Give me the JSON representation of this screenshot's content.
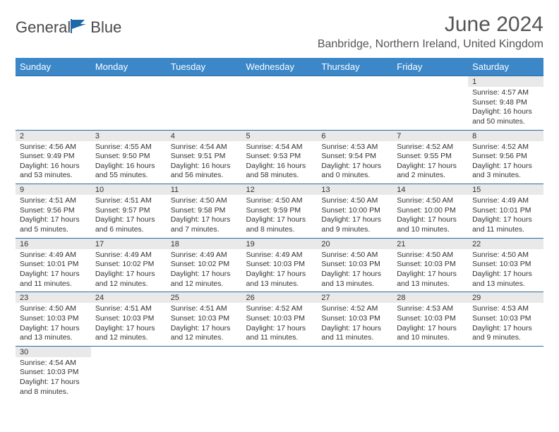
{
  "brand": {
    "name1": "General",
    "name2": "Blue"
  },
  "header": {
    "title": "June 2024",
    "location": "Banbridge, Northern Ireland, United Kingdom"
  },
  "colors": {
    "header_bg": "#3b87c8",
    "header_text": "#ffffff",
    "daynum_bg": "#e9e9e9",
    "border": "#2f6aa0",
    "text": "#333333",
    "logo_accent": "#1e68a8"
  },
  "weekdays": [
    "Sunday",
    "Monday",
    "Tuesday",
    "Wednesday",
    "Thursday",
    "Friday",
    "Saturday"
  ],
  "weeks": [
    [
      null,
      null,
      null,
      null,
      null,
      null,
      {
        "n": "1",
        "sr": "Sunrise: 4:57 AM",
        "ss": "Sunset: 9:48 PM",
        "d1": "Daylight: 16 hours",
        "d2": "and 50 minutes."
      }
    ],
    [
      {
        "n": "2",
        "sr": "Sunrise: 4:56 AM",
        "ss": "Sunset: 9:49 PM",
        "d1": "Daylight: 16 hours",
        "d2": "and 53 minutes."
      },
      {
        "n": "3",
        "sr": "Sunrise: 4:55 AM",
        "ss": "Sunset: 9:50 PM",
        "d1": "Daylight: 16 hours",
        "d2": "and 55 minutes."
      },
      {
        "n": "4",
        "sr": "Sunrise: 4:54 AM",
        "ss": "Sunset: 9:51 PM",
        "d1": "Daylight: 16 hours",
        "d2": "and 56 minutes."
      },
      {
        "n": "5",
        "sr": "Sunrise: 4:54 AM",
        "ss": "Sunset: 9:53 PM",
        "d1": "Daylight: 16 hours",
        "d2": "and 58 minutes."
      },
      {
        "n": "6",
        "sr": "Sunrise: 4:53 AM",
        "ss": "Sunset: 9:54 PM",
        "d1": "Daylight: 17 hours",
        "d2": "and 0 minutes."
      },
      {
        "n": "7",
        "sr": "Sunrise: 4:52 AM",
        "ss": "Sunset: 9:55 PM",
        "d1": "Daylight: 17 hours",
        "d2": "and 2 minutes."
      },
      {
        "n": "8",
        "sr": "Sunrise: 4:52 AM",
        "ss": "Sunset: 9:56 PM",
        "d1": "Daylight: 17 hours",
        "d2": "and 3 minutes."
      }
    ],
    [
      {
        "n": "9",
        "sr": "Sunrise: 4:51 AM",
        "ss": "Sunset: 9:56 PM",
        "d1": "Daylight: 17 hours",
        "d2": "and 5 minutes."
      },
      {
        "n": "10",
        "sr": "Sunrise: 4:51 AM",
        "ss": "Sunset: 9:57 PM",
        "d1": "Daylight: 17 hours",
        "d2": "and 6 minutes."
      },
      {
        "n": "11",
        "sr": "Sunrise: 4:50 AM",
        "ss": "Sunset: 9:58 PM",
        "d1": "Daylight: 17 hours",
        "d2": "and 7 minutes."
      },
      {
        "n": "12",
        "sr": "Sunrise: 4:50 AM",
        "ss": "Sunset: 9:59 PM",
        "d1": "Daylight: 17 hours",
        "d2": "and 8 minutes."
      },
      {
        "n": "13",
        "sr": "Sunrise: 4:50 AM",
        "ss": "Sunset: 10:00 PM",
        "d1": "Daylight: 17 hours",
        "d2": "and 9 minutes."
      },
      {
        "n": "14",
        "sr": "Sunrise: 4:50 AM",
        "ss": "Sunset: 10:00 PM",
        "d1": "Daylight: 17 hours",
        "d2": "and 10 minutes."
      },
      {
        "n": "15",
        "sr": "Sunrise: 4:49 AM",
        "ss": "Sunset: 10:01 PM",
        "d1": "Daylight: 17 hours",
        "d2": "and 11 minutes."
      }
    ],
    [
      {
        "n": "16",
        "sr": "Sunrise: 4:49 AM",
        "ss": "Sunset: 10:01 PM",
        "d1": "Daylight: 17 hours",
        "d2": "and 11 minutes."
      },
      {
        "n": "17",
        "sr": "Sunrise: 4:49 AM",
        "ss": "Sunset: 10:02 PM",
        "d1": "Daylight: 17 hours",
        "d2": "and 12 minutes."
      },
      {
        "n": "18",
        "sr": "Sunrise: 4:49 AM",
        "ss": "Sunset: 10:02 PM",
        "d1": "Daylight: 17 hours",
        "d2": "and 12 minutes."
      },
      {
        "n": "19",
        "sr": "Sunrise: 4:49 AM",
        "ss": "Sunset: 10:03 PM",
        "d1": "Daylight: 17 hours",
        "d2": "and 13 minutes."
      },
      {
        "n": "20",
        "sr": "Sunrise: 4:50 AM",
        "ss": "Sunset: 10:03 PM",
        "d1": "Daylight: 17 hours",
        "d2": "and 13 minutes."
      },
      {
        "n": "21",
        "sr": "Sunrise: 4:50 AM",
        "ss": "Sunset: 10:03 PM",
        "d1": "Daylight: 17 hours",
        "d2": "and 13 minutes."
      },
      {
        "n": "22",
        "sr": "Sunrise: 4:50 AM",
        "ss": "Sunset: 10:03 PM",
        "d1": "Daylight: 17 hours",
        "d2": "and 13 minutes."
      }
    ],
    [
      {
        "n": "23",
        "sr": "Sunrise: 4:50 AM",
        "ss": "Sunset: 10:03 PM",
        "d1": "Daylight: 17 hours",
        "d2": "and 13 minutes."
      },
      {
        "n": "24",
        "sr": "Sunrise: 4:51 AM",
        "ss": "Sunset: 10:03 PM",
        "d1": "Daylight: 17 hours",
        "d2": "and 12 minutes."
      },
      {
        "n": "25",
        "sr": "Sunrise: 4:51 AM",
        "ss": "Sunset: 10:03 PM",
        "d1": "Daylight: 17 hours",
        "d2": "and 12 minutes."
      },
      {
        "n": "26",
        "sr": "Sunrise: 4:52 AM",
        "ss": "Sunset: 10:03 PM",
        "d1": "Daylight: 17 hours",
        "d2": "and 11 minutes."
      },
      {
        "n": "27",
        "sr": "Sunrise: 4:52 AM",
        "ss": "Sunset: 10:03 PM",
        "d1": "Daylight: 17 hours",
        "d2": "and 11 minutes."
      },
      {
        "n": "28",
        "sr": "Sunrise: 4:53 AM",
        "ss": "Sunset: 10:03 PM",
        "d1": "Daylight: 17 hours",
        "d2": "and 10 minutes."
      },
      {
        "n": "29",
        "sr": "Sunrise: 4:53 AM",
        "ss": "Sunset: 10:03 PM",
        "d1": "Daylight: 17 hours",
        "d2": "and 9 minutes."
      }
    ],
    [
      {
        "n": "30",
        "sr": "Sunrise: 4:54 AM",
        "ss": "Sunset: 10:03 PM",
        "d1": "Daylight: 17 hours",
        "d2": "and 8 minutes."
      },
      null,
      null,
      null,
      null,
      null,
      null
    ]
  ]
}
